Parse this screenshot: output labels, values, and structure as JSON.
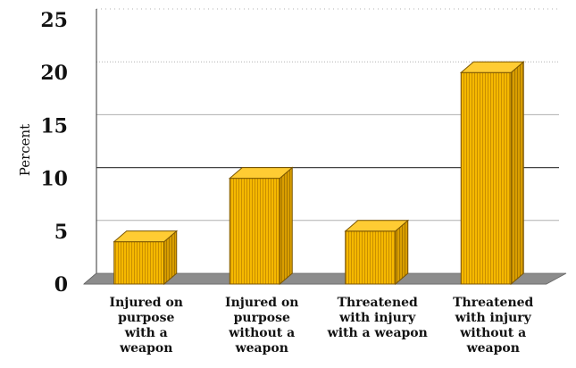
{
  "chart_data": {
    "type": "bar",
    "title": "",
    "xlabel": "",
    "ylabel": "Percent",
    "ylim": [
      0,
      25
    ],
    "yticks": [
      0,
      5,
      10,
      15,
      20,
      25
    ],
    "grid": true,
    "categories": [
      [
        "Injured on",
        "purpose",
        "with a",
        "weapon"
      ],
      [
        "Injured on",
        "purpose",
        "without a",
        "weapon"
      ],
      [
        "Threatened",
        "with injury",
        "with a weapon"
      ],
      [
        "Threatened",
        "with injury",
        "without a",
        "weapon"
      ]
    ],
    "values": [
      4,
      10,
      5,
      20
    ],
    "colors": {
      "bar_front": "#f5b800",
      "bar_side": "#d49a00",
      "bar_top": "#ffcc33",
      "bar_stripe": "#b07d00",
      "floor": "#8c8c8c",
      "wall_grid": "#b0b0b0",
      "axis": "#333333"
    }
  }
}
